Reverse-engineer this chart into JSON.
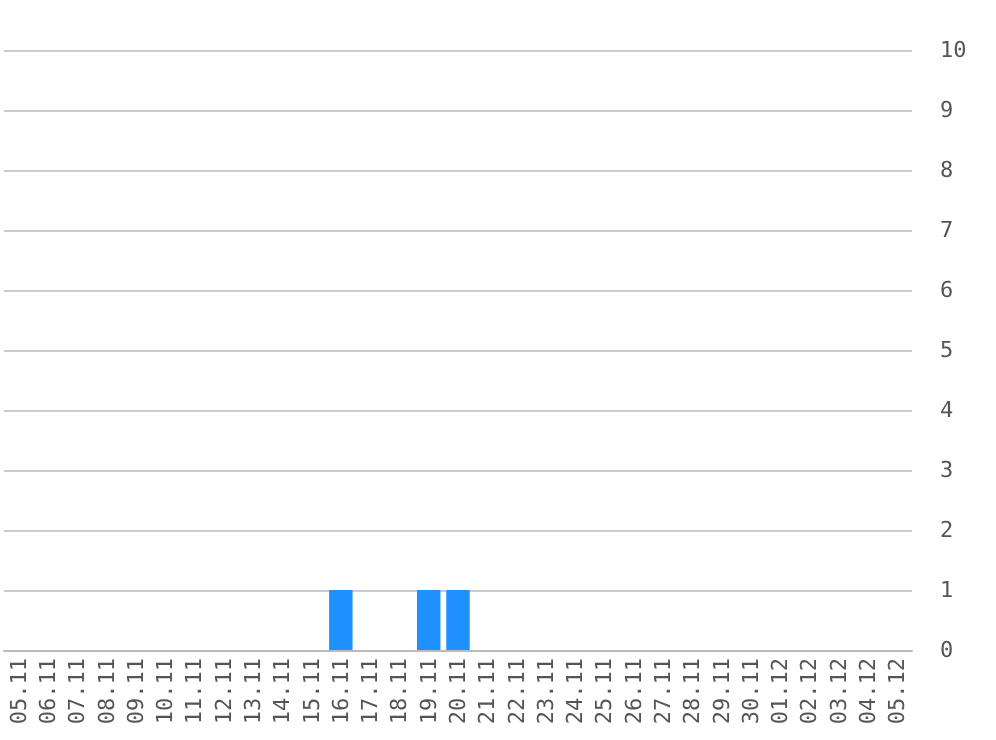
{
  "chart_data": {
    "type": "bar",
    "categories": [
      "05.11",
      "06.11",
      "07.11",
      "08.11",
      "09.11",
      "10.11",
      "11.11",
      "12.11",
      "13.11",
      "14.11",
      "15.11",
      "16.11",
      "17.11",
      "18.11",
      "19.11",
      "20.11",
      "21.11",
      "22.11",
      "23.11",
      "24.11",
      "25.11",
      "26.11",
      "27.11",
      "28.11",
      "29.11",
      "30.11",
      "01.12",
      "02.12",
      "03.12",
      "04.12",
      "05.12"
    ],
    "values": [
      0,
      0,
      0,
      0,
      0,
      0,
      0,
      0,
      0,
      0,
      0,
      1,
      0,
      0,
      1,
      1,
      0,
      0,
      0,
      0,
      0,
      0,
      0,
      0,
      0,
      0,
      0,
      0,
      0,
      0,
      0
    ],
    "color": "#1e90ff",
    "ylim": [
      0,
      10
    ],
    "yticks": [
      0,
      1,
      2,
      3,
      4,
      5,
      6,
      7,
      8,
      9,
      10
    ],
    "grid": "y"
  }
}
